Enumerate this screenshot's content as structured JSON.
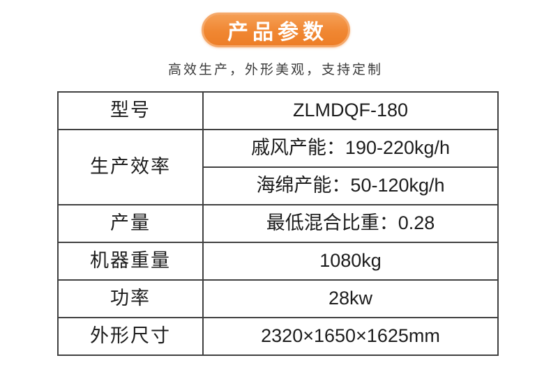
{
  "header": {
    "badge": "产品参数",
    "subtitle": "高效生产，外形美观，支持定制"
  },
  "colors": {
    "badge_orange": "#f08732",
    "badge_orange_light": "#f5a96b",
    "table_border": "#404040",
    "text": "#1c1c1c"
  },
  "table": {
    "rows": [
      {
        "label": "型号",
        "value": "ZLMDQF-180"
      },
      {
        "label": "生产效率",
        "values": [
          "戚风产能：190-220kg/h",
          "海绵产能：50-120kg/h"
        ]
      },
      {
        "label": "产量",
        "value": "最低混合比重：0.28"
      },
      {
        "label": "机器重量",
        "value": "1080kg"
      },
      {
        "label": "功率",
        "value": "28kw"
      },
      {
        "label": "外形尺寸",
        "value": "2320×1650×1625mm"
      }
    ]
  }
}
